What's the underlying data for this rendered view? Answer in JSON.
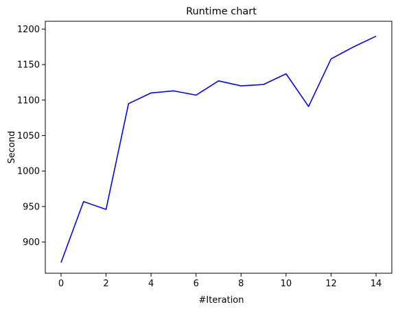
{
  "chart_data": {
    "type": "line",
    "title": "Runtime chart",
    "xlabel": "#Iteration",
    "ylabel": "Second",
    "xlim": [
      -0.7,
      14.7
    ],
    "ylim": [
      856,
      1211
    ],
    "xticks": [
      0,
      2,
      4,
      6,
      8,
      10,
      12,
      14
    ],
    "yticks": [
      900,
      950,
      1000,
      1050,
      1100,
      1150,
      1200
    ],
    "grid": false,
    "series": [
      {
        "color": "#0000ff",
        "x": [
          0,
          1,
          2,
          3,
          4,
          5,
          6,
          7,
          8,
          9,
          10,
          11,
          12,
          13,
          14
        ],
        "values": [
          871,
          957,
          946,
          1095,
          1110,
          1113,
          1107,
          1127,
          1120,
          1122,
          1137,
          1091,
          1158,
          1175,
          1190
        ]
      }
    ]
  }
}
